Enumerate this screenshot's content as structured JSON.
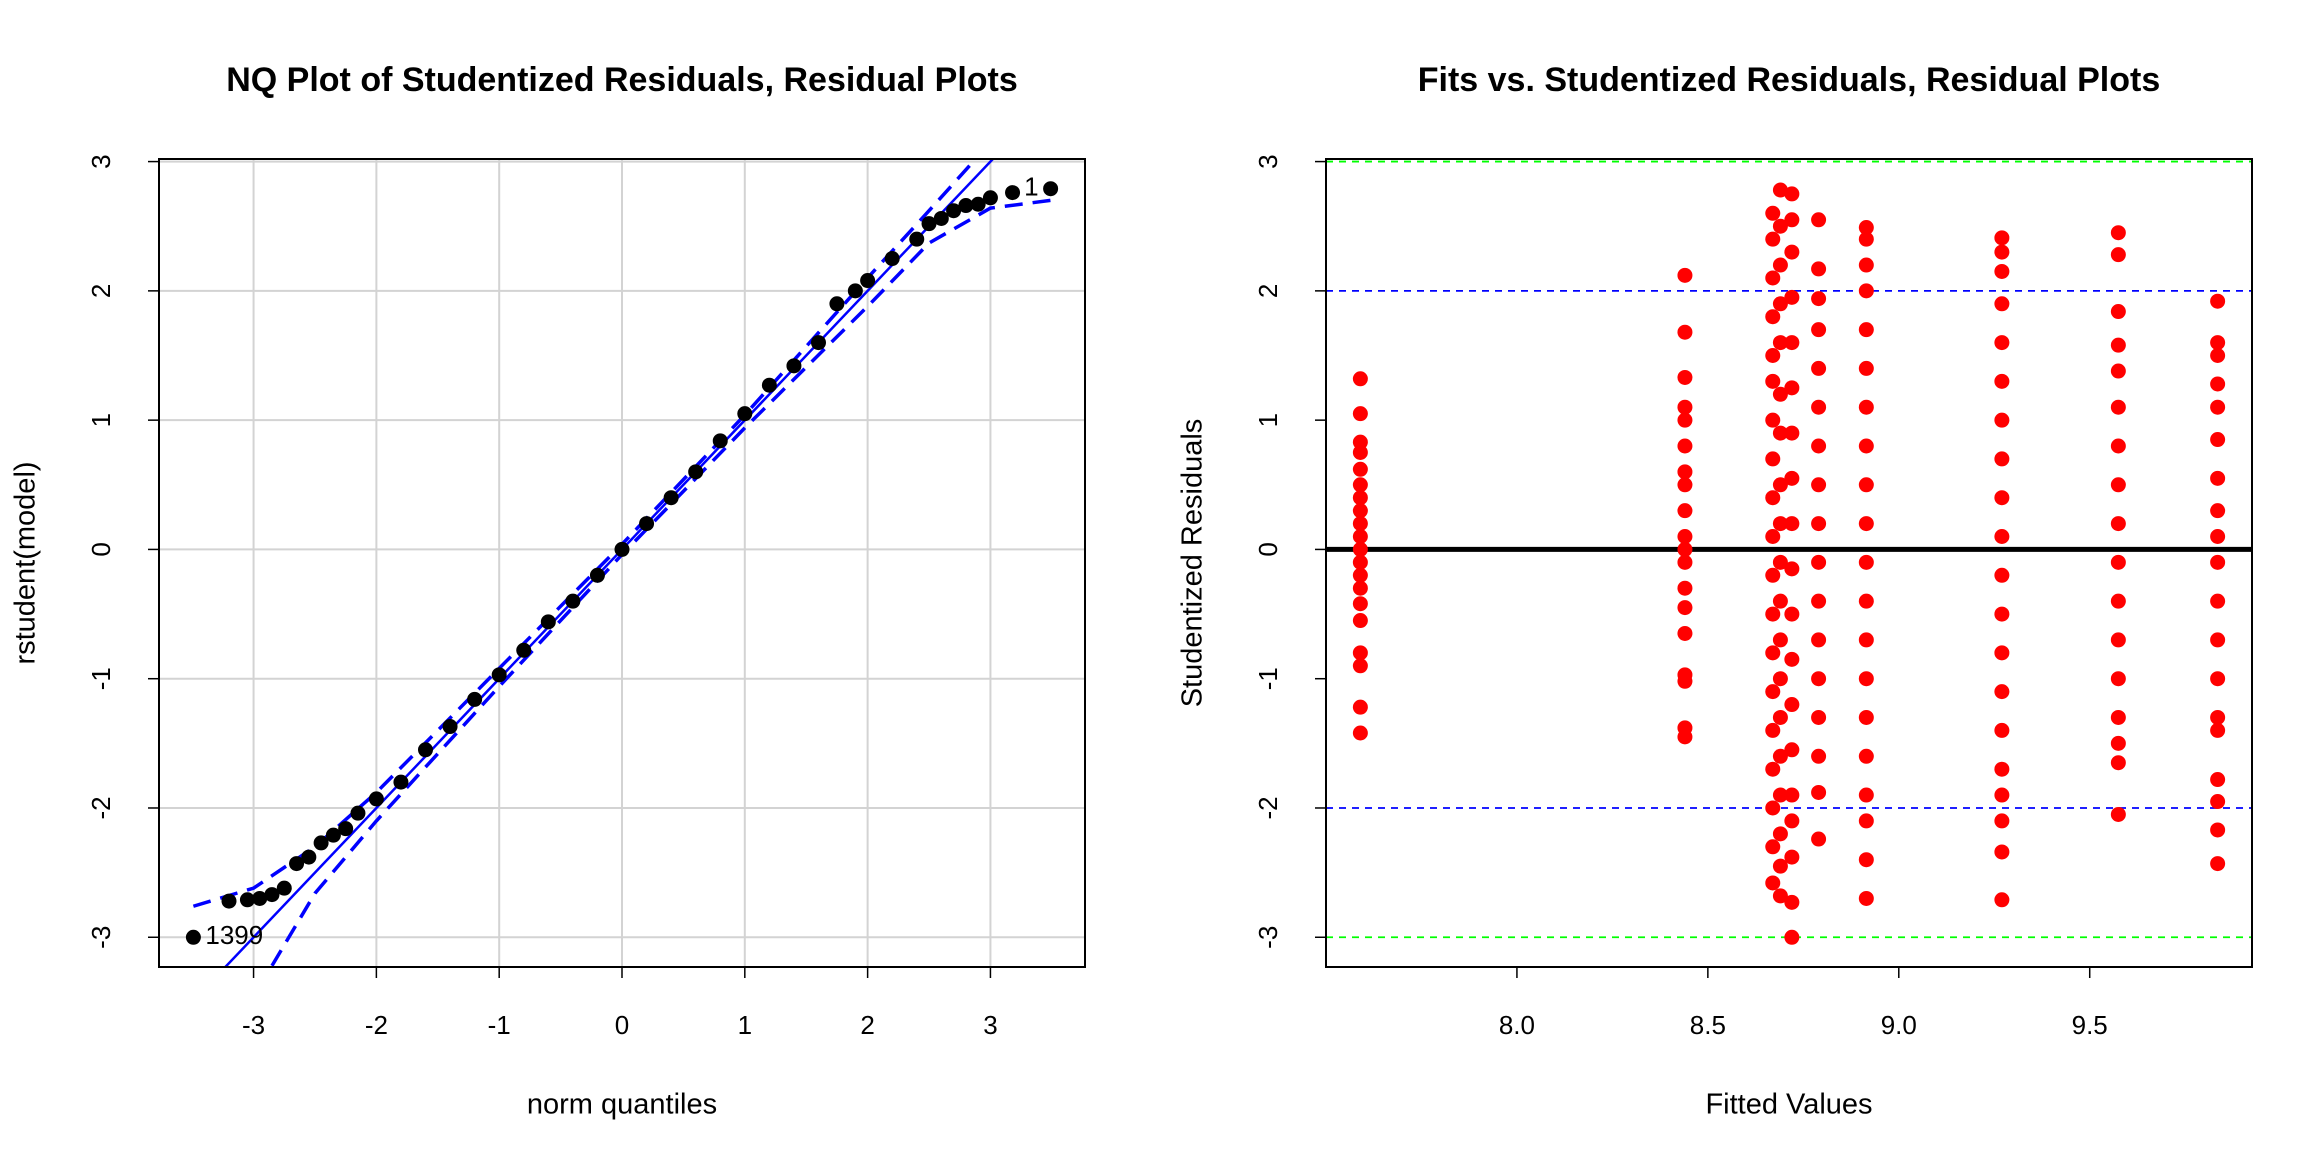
{
  "chart_data": [
    {
      "type": "qq",
      "title": "NQ Plot of Studentized Residuals, Residual Plots",
      "xlabel": "norm quantiles",
      "ylabel": "rstudent(model)",
      "xlim": [
        -3.77,
        3.77
      ],
      "ylim": [
        -3.23,
        3.02
      ],
      "xticks": [
        -3,
        -2,
        -1,
        0,
        1,
        2,
        3
      ],
      "yticks": [
        -3,
        -2,
        -1,
        0,
        1,
        2,
        3
      ],
      "grid": true,
      "color": "#000000",
      "line_color": "#0000ff",
      "x": [
        -3.49,
        -3.2,
        -3.05,
        -2.95,
        -2.85,
        -2.75,
        -2.65,
        -2.55,
        -2.45,
        -2.35,
        -2.25,
        -2.15,
        -2.0,
        -1.8,
        -1.6,
        -1.4,
        -1.2,
        -1.0,
        -0.8,
        -0.6,
        -0.4,
        -0.2,
        0,
        0.2,
        0.4,
        0.6,
        0.8,
        1.0,
        1.2,
        1.4,
        1.6,
        1.75,
        1.9,
        2.0,
        2.2,
        2.4,
        2.5,
        2.6,
        2.7,
        2.8,
        2.9,
        3.0,
        3.18,
        3.49
      ],
      "y": [
        -3.0,
        -2.72,
        -2.71,
        -2.7,
        -2.67,
        -2.62,
        -2.43,
        -2.38,
        -2.27,
        -2.21,
        -2.16,
        -2.04,
        -1.93,
        -1.8,
        -1.55,
        -1.37,
        -1.16,
        -0.97,
        -0.78,
        -0.56,
        -0.4,
        -0.2,
        0,
        0.2,
        0.4,
        0.6,
        0.84,
        1.05,
        1.27,
        1.42,
        1.6,
        1.9,
        2.0,
        2.08,
        2.25,
        2.4,
        2.52,
        2.56,
        2.62,
        2.66,
        2.67,
        2.72,
        2.76,
        2.79
      ],
      "reference_line": {
        "intercept": 0,
        "slope": 1
      },
      "envelope_upper": {
        "x": [
          -3.49,
          -3.0,
          -2.5,
          -2,
          -1,
          0,
          1,
          2,
          2.5,
          2.87
        ],
        "y": [
          -2.76,
          -2.62,
          -2.3,
          -1.88,
          -0.92,
          0.04,
          1.04,
          2.1,
          2.62,
          3.01
        ]
      },
      "envelope_lower": {
        "x": [
          -2.85,
          -2.5,
          -2,
          -1,
          0,
          1,
          2,
          2.5,
          3.0,
          3.49
        ],
        "y": [
          -3.22,
          -2.66,
          -2.1,
          -1.06,
          -0.04,
          0.94,
          1.88,
          2.37,
          2.64,
          2.7
        ]
      },
      "point_labels": [
        {
          "label": "1",
          "index": 43
        },
        {
          "label": "1399",
          "index": 0
        }
      ]
    },
    {
      "type": "scatter",
      "title": "Fits vs. Studentized Residuals, Residual Plots",
      "xlabel": "Fitted Values",
      "ylabel": "Studentized Residuals",
      "xlim": [
        7.5,
        9.925
      ],
      "ylim": [
        -3.23,
        3.02
      ],
      "xticks": [
        {
          "value": 8,
          "label": "8.0"
        },
        8.5,
        {
          "value": 9,
          "label": "9.0"
        },
        9.5
      ],
      "yticks": [
        -3,
        -2,
        -1,
        0,
        1,
        2,
        3
      ],
      "grid": false,
      "color": "#ff0000",
      "hlines": [
        {
          "value": 0,
          "color": "#000000",
          "style": "solid"
        },
        {
          "value": 2,
          "color": "#0000ff",
          "style": "dashed"
        },
        {
          "value": -2,
          "color": "#0000ff",
          "style": "dashed"
        },
        {
          "value": 3,
          "color": "#00ff00",
          "style": "dashed"
        },
        {
          "value": -3,
          "color": "#00ff00",
          "style": "dashed"
        }
      ],
      "groups": [
        {
          "x": 7.59,
          "values": [
            1.32,
            1.05,
            0.83,
            0.75,
            0.62,
            0.5,
            0.4,
            0.3,
            0.2,
            0.1,
            0,
            -0.1,
            -0.2,
            -0.3,
            -0.42,
            -0.55,
            -0.8,
            -0.9,
            -1.22,
            -1.42
          ]
        },
        {
          "x": 8.44,
          "values": [
            2.12,
            1.68,
            1.33,
            1.1,
            1.0,
            0.8,
            0.6,
            0.5,
            0.3,
            0.1,
            0,
            -0.1,
            -0.3,
            -0.45,
            -0.65,
            -0.97,
            -1.02,
            -1.38,
            -1.45
          ]
        },
        {
          "x": 8.67,
          "values": [
            2.6,
            2.4,
            2.1,
            1.8,
            1.5,
            1.3,
            1.0,
            0.7,
            0.4,
            0.1,
            -0.2,
            -0.5,
            -0.8,
            -1.1,
            -1.4,
            -1.7,
            -2.0,
            -2.3,
            -2.58
          ]
        },
        {
          "x": 8.69,
          "values": [
            2.78,
            2.5,
            2.2,
            1.9,
            1.6,
            1.2,
            0.9,
            0.5,
            0.2,
            -0.1,
            -0.4,
            -0.7,
            -1.0,
            -1.3,
            -1.6,
            -1.9,
            -2.2,
            -2.45,
            -2.68
          ]
        },
        {
          "x": 8.72,
          "values": [
            2.75,
            2.55,
            2.3,
            1.95,
            1.6,
            1.25,
            0.9,
            0.55,
            0.2,
            -0.15,
            -0.5,
            -0.85,
            -1.2,
            -1.55,
            -1.9,
            -2.1,
            -2.38,
            -2.73,
            -3.0
          ]
        },
        {
          "x": 8.79,
          "values": [
            2.55,
            2.17,
            1.94,
            1.7,
            1.4,
            1.1,
            0.8,
            0.5,
            0.2,
            -0.1,
            -0.4,
            -0.7,
            -1.0,
            -1.3,
            -1.6,
            -1.88,
            -2.24
          ]
        },
        {
          "x": 8.915,
          "values": [
            2.49,
            2.4,
            2.2,
            2.0,
            1.7,
            1.4,
            1.1,
            0.8,
            0.5,
            0.2,
            -0.1,
            -0.4,
            -0.7,
            -1.0,
            -1.3,
            -1.6,
            -1.9,
            -2.1,
            -2.4,
            -2.7
          ]
        },
        {
          "x": 9.27,
          "values": [
            2.41,
            2.3,
            2.15,
            1.9,
            1.6,
            1.3,
            1.0,
            0.7,
            0.4,
            0.1,
            -0.2,
            -0.5,
            -0.8,
            -1.1,
            -1.4,
            -1.7,
            -1.9,
            -2.1,
            -2.34,
            -2.71
          ]
        },
        {
          "x": 9.575,
          "values": [
            2.45,
            2.28,
            1.84,
            1.58,
            1.38,
            1.1,
            0.8,
            0.5,
            0.2,
            -0.1,
            -0.4,
            -0.7,
            -1.0,
            -1.3,
            -1.5,
            -1.65,
            -2.05
          ]
        },
        {
          "x": 9.835,
          "values": [
            1.92,
            1.6,
            1.5,
            1.28,
            1.1,
            0.85,
            0.55,
            0.3,
            0.1,
            -0.1,
            -0.4,
            -0.7,
            -1.0,
            -1.3,
            -1.4,
            -1.78,
            -1.95,
            -2.17,
            -2.43
          ]
        }
      ]
    }
  ]
}
